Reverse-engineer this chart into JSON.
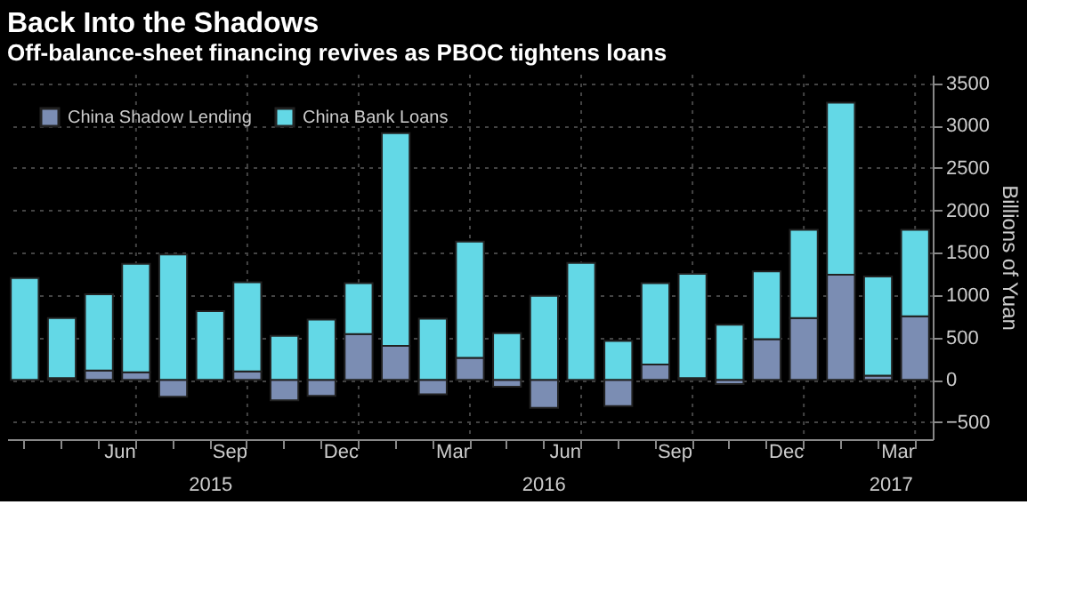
{
  "chart_data": {
    "type": "bar",
    "title": "Back Into the Shadows",
    "subtitle": "Off-balance-sheet financing revives as PBOC tightens loans",
    "ylabel": "Billions of Yuan",
    "categories": [
      null,
      null,
      null,
      "Jun",
      null,
      null,
      "Sep",
      null,
      null,
      "Dec",
      null,
      null,
      "Mar",
      null,
      null,
      "Jun",
      null,
      null,
      "Sep",
      null,
      null,
      "Dec",
      null,
      null,
      "Mar"
    ],
    "series": [
      {
        "name": "China Shadow Lending",
        "color": "#7b8db3",
        "values": [
          null,
          20,
          110,
          90,
          -200,
          null,
          100,
          -240,
          -190,
          540,
          400,
          -170,
          260,
          -80,
          -330,
          null,
          -310,
          180,
          20,
          -50,
          480,
          730,
          1240,
          50,
          750
        ]
      },
      {
        "name": "China Bank Loans",
        "color": "#63d8e6",
        "values": [
          1200,
          710,
          900,
          1280,
          1480,
          810,
          1050,
          520,
          710,
          600,
          2510,
          720,
          1370,
          550,
          990,
          1380,
          460,
          960,
          1230,
          650,
          800,
          1040,
          2030,
          1170,
          1020
        ]
      }
    ],
    "stacked": true,
    "ylim": [
      -700,
      3600
    ],
    "yticks": [
      -500,
      0,
      500,
      1000,
      1500,
      2000,
      2500,
      3000,
      3500
    ],
    "grid": true,
    "legend": "top left",
    "annotations": [
      "2015",
      "2016",
      "2017"
    ]
  }
}
